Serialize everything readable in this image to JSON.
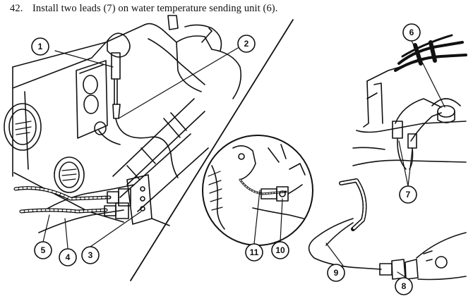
{
  "step": {
    "number": "42.",
    "text": "Install two leads (7) on water temperature sending unit (6)."
  },
  "callouts": [
    "1",
    "2",
    "3",
    "4",
    "5",
    "6",
    "7",
    "8",
    "9",
    "10",
    "11"
  ]
}
